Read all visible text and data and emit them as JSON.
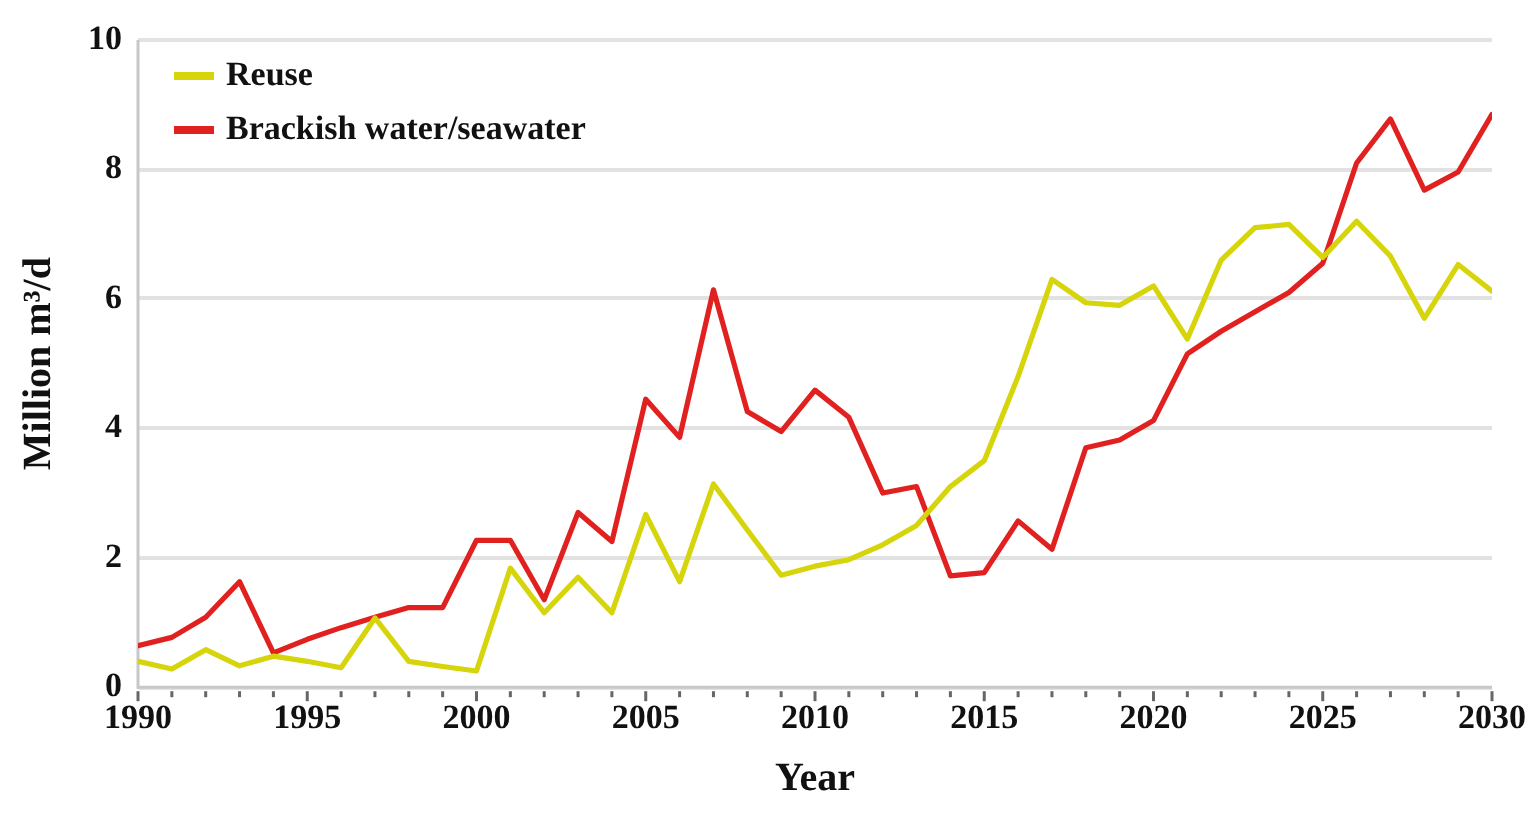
{
  "chart_data": {
    "type": "line",
    "xlabel": "Year",
    "ylabel": "Million m³/d",
    "x": [
      1990,
      1991,
      1992,
      1993,
      1994,
      1995,
      1996,
      1997,
      1998,
      1999,
      2000,
      2001,
      2002,
      2003,
      2004,
      2005,
      2006,
      2007,
      2008,
      2009,
      2010,
      2011,
      2012,
      2013,
      2014,
      2015,
      2016,
      2017,
      2018,
      2019,
      2020,
      2021,
      2022,
      2023,
      2024,
      2025,
      2026,
      2027,
      2028,
      2029,
      2030
    ],
    "series": [
      {
        "name": "Reuse",
        "color": "#d6d40a",
        "values": [
          0.4,
          0.28,
          0.58,
          0.33,
          0.48,
          0.4,
          0.3,
          1.07,
          0.4,
          0.32,
          0.25,
          1.84,
          1.15,
          1.7,
          1.15,
          2.67,
          1.63,
          3.14,
          2.43,
          1.73,
          1.87,
          1.97,
          2.2,
          2.5,
          3.1,
          3.5,
          4.8,
          6.3,
          5.94,
          5.9,
          6.2,
          5.38,
          6.6,
          7.1,
          7.15,
          6.64,
          7.2,
          6.66,
          5.7,
          6.53,
          6.12
        ]
      },
      {
        "name": "Brackish water/seawater",
        "color": "#e0211f",
        "values": [
          0.64,
          0.77,
          1.08,
          1.63,
          0.53,
          0.74,
          0.92,
          1.08,
          1.23,
          1.23,
          2.27,
          2.27,
          1.35,
          2.7,
          2.25,
          4.45,
          3.86,
          6.14,
          4.26,
          3.95,
          4.59,
          4.17,
          3.0,
          3.1,
          1.72,
          1.77,
          2.57,
          2.13,
          3.7,
          3.82,
          4.12,
          5.15,
          5.5,
          5.8,
          6.1,
          6.55,
          8.1,
          8.78,
          7.68,
          7.96,
          8.85
        ]
      }
    ],
    "xlim": [
      1990,
      2030
    ],
    "xticks": [
      1990,
      {
        "value": 1991,
        "label": null
      },
      {
        "value": 1992,
        "label": null
      },
      {
        "value": 1993,
        "label": null
      },
      {
        "value": 1994,
        "label": null
      },
      1995,
      {
        "value": 1996,
        "label": null
      },
      {
        "value": 1997,
        "label": null
      },
      {
        "value": 1998,
        "label": null
      },
      {
        "value": 1999,
        "label": null
      },
      2000,
      {
        "value": 2001,
        "label": null
      },
      {
        "value": 2002,
        "label": null
      },
      {
        "value": 2003,
        "label": null
      },
      {
        "value": 2004,
        "label": null
      },
      2005,
      {
        "value": 2006,
        "label": null
      },
      {
        "value": 2007,
        "label": null
      },
      {
        "value": 2008,
        "label": null
      },
      {
        "value": 2009,
        "label": null
      },
      2010,
      {
        "value": 2011,
        "label": null
      },
      {
        "value": 2012,
        "label": null
      },
      {
        "value": 2013,
        "label": null
      },
      {
        "value": 2014,
        "label": null
      },
      2015,
      {
        "value": 2016,
        "label": null
      },
      {
        "value": 2017,
        "label": null
      },
      {
        "value": 2018,
        "label": null
      },
      {
        "value": 2019,
        "label": null
      },
      2020,
      {
        "value": 2021,
        "label": null
      },
      {
        "value": 2022,
        "label": null
      },
      {
        "value": 2023,
        "label": null
      },
      {
        "value": 2024,
        "label": null
      },
      2025,
      {
        "value": 2026,
        "label": null
      },
      {
        "value": 2027,
        "label": null
      },
      {
        "value": 2028,
        "label": null
      },
      {
        "value": 2029,
        "label": null
      },
      2030
    ],
    "ylim": [
      0,
      10
    ],
    "yticks": [
      0,
      2,
      4,
      6,
      8,
      10
    ],
    "grid": "y",
    "legend": "top left",
    "marker": "none",
    "line_style": "solid"
  }
}
